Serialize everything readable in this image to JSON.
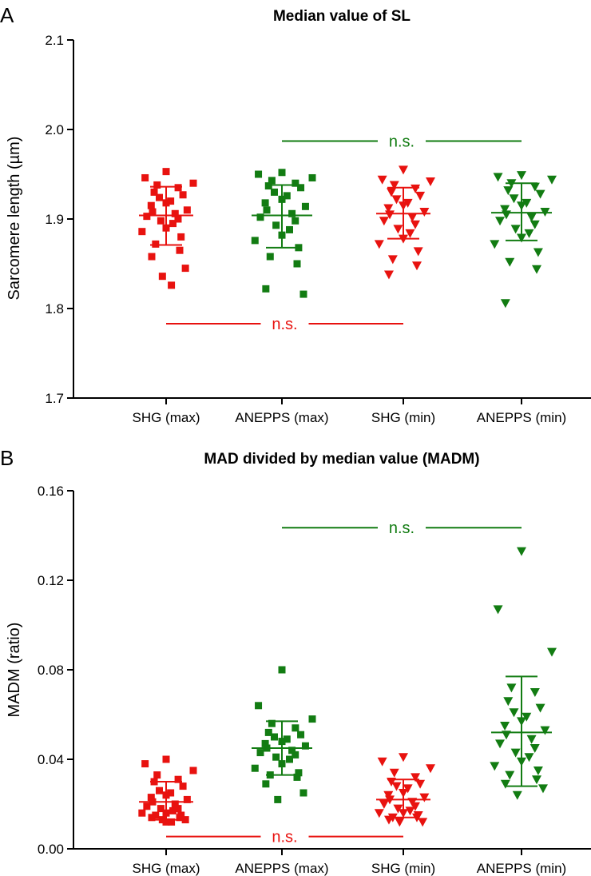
{
  "colors": {
    "red": "#e8120f",
    "green": "#127c12",
    "axis": "#000000"
  },
  "chart_data": [
    {
      "type": "scatter",
      "panel_label": "A",
      "title": "Median value of SL",
      "xlabel": "",
      "ylabel": "Sarcomere length (µm)",
      "ylim": [
        1.7,
        2.1
      ],
      "yticks": [
        "1.7",
        "1.8",
        "1.9",
        "2.0",
        "2.1"
      ],
      "categories": [
        "SHG (max)",
        "ANEPPS (max)",
        "SHG (min)",
        "ANEPPS (min)"
      ],
      "series": [
        {
          "name": "SHG (max)",
          "color": "red",
          "marker": "square",
          "mean": 1.904,
          "sd_low": 1.871,
          "sd_high": 1.936,
          "values": [
            1.953,
            1.946,
            1.94,
            1.938,
            1.935,
            1.93,
            1.927,
            1.924,
            1.92,
            1.918,
            1.915,
            1.91,
            1.908,
            1.906,
            1.903,
            1.9,
            1.898,
            1.895,
            1.89,
            1.886,
            1.88,
            1.872,
            1.865,
            1.858,
            1.845,
            1.836,
            1.826
          ]
        },
        {
          "name": "ANEPPS (max)",
          "color": "green",
          "marker": "square",
          "mean": 1.904,
          "sd_low": 1.868,
          "sd_high": 1.938,
          "values": [
            1.952,
            1.95,
            1.946,
            1.943,
            1.94,
            1.937,
            1.935,
            1.93,
            1.926,
            1.922,
            1.918,
            1.914,
            1.91,
            1.906,
            1.902,
            1.898,
            1.893,
            1.888,
            1.882,
            1.876,
            1.868,
            1.858,
            1.85,
            1.822,
            1.816
          ]
        },
        {
          "name": "SHG (min)",
          "color": "red",
          "marker": "triangle-down",
          "mean": 1.906,
          "sd_low": 1.878,
          "sd_high": 1.935,
          "values": [
            1.955,
            1.944,
            1.942,
            1.938,
            1.934,
            1.93,
            1.926,
            1.922,
            1.918,
            1.915,
            1.912,
            1.908,
            1.905,
            1.902,
            1.898,
            1.894,
            1.889,
            1.884,
            1.878,
            1.872,
            1.864,
            1.855,
            1.848,
            1.838
          ]
        },
        {
          "name": "ANEPPS (min)",
          "color": "green",
          "marker": "triangle-down",
          "mean": 1.907,
          "sd_low": 1.876,
          "sd_high": 1.94,
          "values": [
            1.949,
            1.947,
            1.944,
            1.94,
            1.936,
            1.932,
            1.928,
            1.923,
            1.918,
            1.915,
            1.911,
            1.908,
            1.905,
            1.902,
            1.898,
            1.894,
            1.889,
            1.884,
            1.879,
            1.872,
            1.863,
            1.852,
            1.844,
            1.806
          ]
        }
      ],
      "annotations": [
        {
          "text": "n.s.",
          "color": "green",
          "from_category": 1,
          "to_category": 3,
          "y": 1.987
        },
        {
          "text": "n.s.",
          "color": "red",
          "from_category": 0,
          "to_category": 2,
          "y": 1.783
        }
      ]
    },
    {
      "type": "scatter",
      "panel_label": "B",
      "title": "MAD divided by median value (MADM)",
      "xlabel": "",
      "ylabel": "MADM (ratio)",
      "ylim": [
        0.0,
        0.16
      ],
      "yticks": [
        "0.00",
        "0.04",
        "0.08",
        "0.12",
        "0.16"
      ],
      "categories": [
        "SHG (max)",
        "ANEPPS (max)",
        "SHG (min)",
        "ANEPPS (min)"
      ],
      "series": [
        {
          "name": "SHG (max)",
          "color": "red",
          "marker": "square",
          "mean": 0.021,
          "sd_low": 0.013,
          "sd_high": 0.03,
          "values": [
            0.04,
            0.038,
            0.035,
            0.033,
            0.031,
            0.03,
            0.028,
            0.026,
            0.025,
            0.024,
            0.023,
            0.022,
            0.021,
            0.02,
            0.019,
            0.018,
            0.018,
            0.017,
            0.016,
            0.016,
            0.015,
            0.015,
            0.014,
            0.014,
            0.013,
            0.013,
            0.012,
            0.012
          ]
        },
        {
          "name": "ANEPPS (max)",
          "color": "green",
          "marker": "square",
          "mean": 0.045,
          "sd_low": 0.033,
          "sd_high": 0.057,
          "values": [
            0.08,
            0.064,
            0.058,
            0.056,
            0.054,
            0.052,
            0.051,
            0.05,
            0.049,
            0.048,
            0.047,
            0.046,
            0.045,
            0.044,
            0.043,
            0.042,
            0.041,
            0.04,
            0.038,
            0.036,
            0.034,
            0.033,
            0.032,
            0.029,
            0.025,
            0.022
          ]
        },
        {
          "name": "SHG (min)",
          "color": "red",
          "marker": "triangle-down",
          "mean": 0.022,
          "sd_low": 0.014,
          "sd_high": 0.031,
          "values": [
            0.041,
            0.039,
            0.036,
            0.034,
            0.032,
            0.03,
            0.029,
            0.028,
            0.027,
            0.025,
            0.024,
            0.023,
            0.022,
            0.021,
            0.02,
            0.019,
            0.018,
            0.017,
            0.016,
            0.016,
            0.015,
            0.014,
            0.014,
            0.013,
            0.012,
            0.012
          ]
        },
        {
          "name": "ANEPPS (min)",
          "color": "green",
          "marker": "triangle-down",
          "mean": 0.052,
          "sd_low": 0.028,
          "sd_high": 0.077,
          "values": [
            0.133,
            0.107,
            0.088,
            0.072,
            0.07,
            0.066,
            0.063,
            0.061,
            0.059,
            0.057,
            0.055,
            0.053,
            0.051,
            0.049,
            0.047,
            0.045,
            0.043,
            0.041,
            0.039,
            0.037,
            0.035,
            0.033,
            0.031,
            0.029,
            0.027,
            0.024
          ]
        }
      ],
      "annotations": [
        {
          "text": "n.s.",
          "color": "green",
          "from_category": 1,
          "to_category": 3,
          "y": 0.1435
        },
        {
          "text": "n.s.",
          "color": "red",
          "from_category": 0,
          "to_category": 2,
          "y": 0.0055
        }
      ]
    }
  ]
}
